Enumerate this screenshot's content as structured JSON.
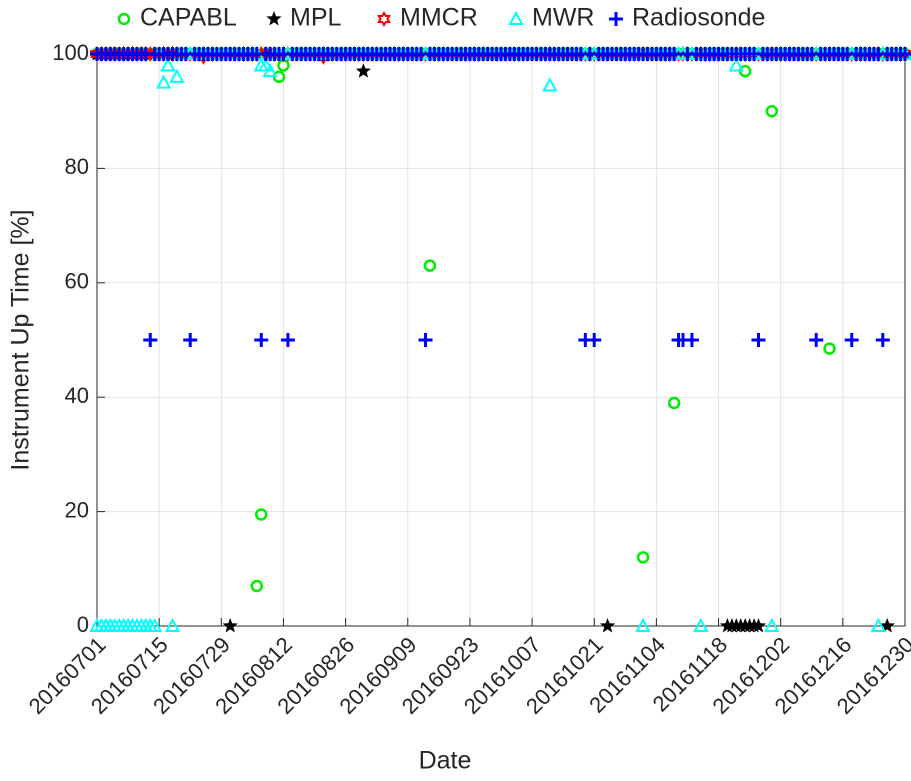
{
  "chart_data": {
    "type": "scatter",
    "x_label": "Date",
    "y_label": "Instrument Up Time [%]",
    "x": [
      "20160701",
      "20160702",
      "20160703",
      "20160704",
      "20160705",
      "20160706",
      "20160707",
      "20160708",
      "20160709",
      "20160710",
      "20160711",
      "20160712",
      "20160713",
      "20160714",
      "20160715",
      "20160716",
      "20160717",
      "20160718",
      "20160719",
      "20160720",
      "20160721",
      "20160722",
      "20160723",
      "20160724",
      "20160725",
      "20160726",
      "20160727",
      "20160728",
      "20160729",
      "20160730",
      "20160731",
      "20160801",
      "20160802",
      "20160803",
      "20160804",
      "20160805",
      "20160806",
      "20160807",
      "20160808",
      "20160809",
      "20160810",
      "20160811",
      "20160812",
      "20160813",
      "20160814",
      "20160815",
      "20160816",
      "20160817",
      "20160818",
      "20160819",
      "20160820",
      "20160821",
      "20160822",
      "20160823",
      "20160824",
      "20160825",
      "20160826",
      "20160827",
      "20160828",
      "20160829",
      "20160830",
      "20160831",
      "20160901",
      "20160902",
      "20160903",
      "20160904",
      "20160905",
      "20160906",
      "20160907",
      "20160908",
      "20160909",
      "20160910",
      "20160911",
      "20160912",
      "20160913",
      "20160914",
      "20160915",
      "20160916",
      "20160917",
      "20160918",
      "20160919",
      "20160920",
      "20160921",
      "20160922",
      "20160923",
      "20160924",
      "20160925",
      "20160926",
      "20160927",
      "20160928",
      "20160929",
      "20160930",
      "20161001",
      "20161002",
      "20161003",
      "20161004",
      "20161005",
      "20161006",
      "20161007",
      "20161008",
      "20161009",
      "20161010",
      "20161011",
      "20161012",
      "20161013",
      "20161014",
      "20161015",
      "20161016",
      "20161017",
      "20161018",
      "20161019",
      "20161020",
      "20161021",
      "20161022",
      "20161023",
      "20161024",
      "20161025",
      "20161026",
      "20161027",
      "20161028",
      "20161029",
      "20161030",
      "20161031",
      "20161101",
      "20161102",
      "20161103",
      "20161104",
      "20161105",
      "20161106",
      "20161107",
      "20161108",
      "20161109",
      "20161110",
      "20161111",
      "20161112",
      "20161113",
      "20161114",
      "20161115",
      "20161116",
      "20161117",
      "20161118",
      "20161119",
      "20161120",
      "20161121",
      "20161122",
      "20161123",
      "20161124",
      "20161125",
      "20161126",
      "20161127",
      "20161128",
      "20161129",
      "20161130",
      "20161201",
      "20161202",
      "20161203",
      "20161204",
      "20161205",
      "20161206",
      "20161207",
      "20161208",
      "20161209",
      "20161210",
      "20161211",
      "20161212",
      "20161213",
      "20161214",
      "20161215",
      "20161216",
      "20161217",
      "20161218",
      "20161219",
      "20161220",
      "20161221",
      "20161222",
      "20161223",
      "20161224",
      "20161225",
      "20161226",
      "20161227",
      "20161228",
      "20161229",
      "20161230"
    ],
    "series": [
      {
        "name": "CAPABL",
        "color": "#00ee00",
        "marker": "circle",
        "values": [
          100,
          100,
          100,
          100,
          100,
          100,
          100,
          100,
          100,
          100,
          100,
          100,
          100,
          100,
          100,
          100,
          100,
          100,
          100,
          100,
          100,
          100,
          100,
          100,
          100,
          100,
          100,
          100,
          100,
          100,
          100,
          100,
          100,
          100,
          100,
          100,
          7,
          19.5,
          100,
          100,
          100,
          96,
          98,
          100,
          100,
          100,
          100,
          100,
          100,
          100,
          100,
          100,
          100,
          100,
          100,
          100,
          100,
          100,
          100,
          100,
          100,
          100,
          100,
          100,
          100,
          100,
          100,
          100,
          100,
          100,
          100,
          100,
          100,
          100,
          100,
          63,
          100,
          100,
          100,
          100,
          100,
          100,
          100,
          100,
          100,
          100,
          100,
          100,
          100,
          100,
          100,
          100,
          100,
          100,
          100,
          100,
          100,
          100,
          100,
          100,
          100,
          100,
          100,
          100,
          100,
          100,
          100,
          100,
          100,
          100,
          100,
          100,
          100,
          100,
          100,
          100,
          100,
          100,
          100,
          100,
          100,
          100,
          100,
          12,
          100,
          100,
          100,
          100,
          100,
          100,
          39,
          100,
          100,
          100,
          100,
          100,
          100,
          100,
          100,
          100,
          100,
          100,
          100,
          100,
          100,
          100,
          97,
          100,
          100,
          100,
          100,
          100,
          90,
          100,
          100,
          100,
          100,
          100,
          100,
          100,
          100,
          100,
          100,
          100,
          100,
          48.5,
          100,
          100,
          100,
          100,
          100,
          100,
          100,
          100,
          100,
          100,
          100,
          100,
          100,
          100,
          100,
          100,
          100
        ]
      },
      {
        "name": "MPL",
        "color": "#000000",
        "marker": "star",
        "values": [
          100,
          100,
          100,
          100,
          100,
          100,
          100,
          100,
          100,
          100,
          100,
          100,
          100,
          100,
          100,
          100,
          100,
          100,
          100,
          100,
          100,
          100,
          100,
          100,
          100,
          100,
          100,
          100,
          100,
          100,
          0,
          100,
          100,
          100,
          100,
          100,
          100,
          100,
          100,
          100,
          100,
          100,
          100,
          100,
          100,
          100,
          100,
          100,
          100,
          100,
          100,
          100,
          100,
          100,
          100,
          100,
          100,
          100,
          100,
          100,
          97,
          100,
          100,
          100,
          100,
          100,
          100,
          100,
          100,
          100,
          100,
          100,
          100,
          100,
          100,
          100,
          100,
          100,
          100,
          100,
          100,
          100,
          100,
          100,
          100,
          100,
          100,
          100,
          100,
          100,
          100,
          100,
          100,
          100,
          100,
          100,
          100,
          100,
          100,
          100,
          100,
          100,
          100,
          100,
          100,
          100,
          100,
          100,
          100,
          100,
          100,
          100,
          100,
          100,
          100,
          0,
          100,
          100,
          100,
          100,
          100,
          100,
          100,
          100,
          100,
          100,
          100,
          100,
          100,
          100,
          100,
          100,
          100,
          100,
          100,
          100,
          100,
          100,
          100,
          100,
          100,
          100,
          0,
          0,
          0,
          0,
          0,
          0,
          0,
          0,
          100,
          100,
          100,
          100,
          100,
          100,
          100,
          100,
          100,
          100,
          100,
          100,
          100,
          100,
          100,
          100,
          100,
          100,
          100,
          100,
          100,
          100,
          100,
          100,
          100,
          100,
          100,
          100,
          0,
          100,
          100,
          100,
          100
        ]
      },
      {
        "name": "MMCR",
        "color": "#ff0000",
        "marker": "hexagram",
        "values": [
          100,
          100,
          100,
          100,
          100,
          100,
          100,
          100,
          100,
          100,
          100,
          100,
          100,
          100,
          100,
          100,
          100,
          100,
          100,
          100,
          100,
          100,
          100,
          100,
          99.5,
          100,
          100,
          100,
          100,
          100,
          100,
          100,
          100,
          100,
          100,
          100,
          100,
          100,
          100,
          100,
          100,
          100,
          100,
          100,
          100,
          100,
          100,
          100,
          100,
          100,
          100,
          99.5,
          100,
          100,
          100,
          100,
          100,
          100,
          100,
          100,
          100,
          100,
          100,
          100,
          100,
          100,
          100,
          100,
          100,
          100,
          100,
          100,
          100,
          100,
          100,
          100,
          100,
          100,
          100,
          100,
          100,
          100,
          100,
          100,
          100,
          100,
          100,
          100,
          100,
          100,
          100,
          100,
          100,
          100,
          100,
          100,
          100,
          100,
          100,
          100,
          100,
          100,
          100,
          100,
          100,
          100,
          100,
          100,
          100,
          100,
          100,
          100,
          100,
          100,
          100,
          100,
          100,
          100,
          100,
          100,
          100,
          100,
          100,
          100,
          100,
          100,
          100,
          100,
          100,
          100,
          100,
          100,
          100,
          100,
          100,
          100,
          100,
          100,
          100,
          100,
          100,
          100,
          100,
          100,
          100,
          100,
          100,
          100,
          100,
          100,
          100,
          100,
          100,
          100,
          100,
          100,
          100,
          100,
          100,
          100,
          100,
          100,
          100,
          100,
          100,
          100,
          100,
          100,
          100,
          100,
          100,
          100,
          100,
          100,
          100,
          100,
          100,
          100,
          100,
          100,
          100,
          100,
          100
        ]
      },
      {
        "name": "MWR",
        "color": "#00ffff",
        "marker": "triangle",
        "values": [
          0,
          0,
          0,
          0,
          0,
          0,
          0,
          0,
          0,
          0,
          0,
          0,
          0,
          0,
          100,
          95,
          98,
          0,
          96,
          100,
          100,
          100,
          100,
          100,
          100,
          100,
          100,
          100,
          100,
          100,
          100,
          100,
          100,
          100,
          100,
          100,
          100,
          98,
          98,
          97,
          100,
          100,
          100,
          100,
          100,
          100,
          100,
          100,
          100,
          100,
          100,
          100,
          100,
          100,
          100,
          100,
          100,
          100,
          100,
          100,
          100,
          100,
          100,
          100,
          100,
          100,
          100,
          100,
          100,
          100,
          100,
          100,
          100,
          100,
          100,
          100,
          100,
          100,
          100,
          100,
          100,
          100,
          100,
          100,
          100,
          100,
          100,
          100,
          100,
          100,
          100,
          100,
          100,
          100,
          100,
          100,
          100,
          100,
          100,
          100,
          100,
          100,
          94.5,
          100,
          100,
          100,
          100,
          100,
          100,
          100,
          100,
          100,
          100,
          100,
          100,
          100,
          100,
          100,
          100,
          100,
          100,
          100,
          100,
          0,
          100,
          100,
          100,
          100,
          100,
          100,
          100,
          100,
          100,
          100,
          100,
          100,
          0,
          100,
          100,
          100,
          100,
          100,
          100,
          100,
          98,
          100,
          100,
          100,
          100,
          100,
          100,
          100,
          0,
          100,
          100,
          100,
          100,
          100,
          100,
          100,
          100,
          100,
          100,
          100,
          100,
          100,
          100,
          100,
          100,
          100,
          100,
          100,
          100,
          100,
          100,
          100,
          0,
          100,
          100,
          100,
          100,
          100,
          100
        ]
      },
      {
        "name": "Radiosonde",
        "color": "#0000ff",
        "marker": "plus",
        "values": [
          100,
          100,
          100,
          100,
          100,
          100,
          100,
          100,
          100,
          100,
          100,
          100,
          50,
          100,
          100,
          100,
          100,
          100,
          100,
          100,
          100,
          50,
          100,
          100,
          100,
          100,
          100,
          100,
          100,
          100,
          100,
          100,
          100,
          100,
          100,
          100,
          100,
          50,
          100,
          100,
          100,
          100,
          100,
          50,
          100,
          100,
          100,
          100,
          100,
          100,
          100,
          100,
          100,
          100,
          100,
          100,
          100,
          100,
          100,
          100,
          100,
          100,
          100,
          100,
          100,
          100,
          100,
          100,
          100,
          100,
          100,
          100,
          100,
          100,
          50,
          100,
          100,
          100,
          100,
          100,
          100,
          100,
          100,
          100,
          100,
          100,
          100,
          100,
          100,
          100,
          100,
          100,
          100,
          100,
          100,
          100,
          100,
          100,
          100,
          100,
          100,
          100,
          100,
          100,
          100,
          100,
          100,
          100,
          100,
          100,
          50,
          100,
          50,
          100,
          100,
          100,
          100,
          100,
          100,
          100,
          100,
          100,
          100,
          100,
          100,
          100,
          100,
          100,
          100,
          100,
          100,
          50,
          50,
          100,
          50,
          100,
          100,
          100,
          100,
          100,
          100,
          100,
          100,
          100,
          100,
          100,
          100,
          100,
          100,
          50,
          100,
          100,
          100,
          100,
          100,
          100,
          100,
          100,
          100,
          100,
          100,
          100,
          50,
          100,
          100,
          100,
          100,
          100,
          100,
          100,
          50,
          100,
          100,
          100,
          100,
          100,
          100,
          50,
          100,
          100,
          100,
          100,
          100
        ]
      }
    ],
    "xlim": [
      "20160701",
      "20161230"
    ],
    "xticks": [
      "20160701",
      "20160715",
      "20160729",
      "20160812",
      "20160826",
      "20160909",
      "20160923",
      "20161007",
      "20161021",
      "20161104",
      "20161118",
      "20161202",
      "20161216",
      "20161230"
    ],
    "ylim": [
      0,
      100
    ],
    "yticks": [
      0,
      20,
      40,
      60,
      80,
      100
    ],
    "grid": true,
    "legend": "top"
  }
}
